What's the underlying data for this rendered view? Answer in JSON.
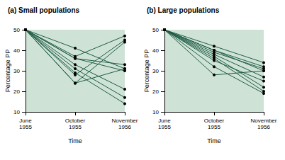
{
  "chart_data": [
    {
      "type": "line",
      "title": "(a) Small populations",
      "x_label": "Time",
      "y_label": "Percentage PP",
      "categories": [
        "June 1955",
        "October 1955",
        "November 1956"
      ],
      "color": "#1e5c46",
      "marker": "circle",
      "grid": false,
      "ylim": [
        10,
        50
      ],
      "yticks": [
        10,
        20,
        30,
        40,
        50
      ],
      "series": [
        {
          "values": [
            50,
            41,
            31
          ]
        },
        {
          "values": [
            50,
            37,
            47
          ]
        },
        {
          "values": [
            50,
            36,
            33
          ]
        },
        {
          "values": [
            50,
            36,
            30
          ]
        },
        {
          "values": [
            50,
            33,
            21
          ]
        },
        {
          "values": [
            50,
            31,
            17
          ]
        },
        {
          "values": [
            50,
            29,
            14
          ]
        },
        {
          "values": [
            50,
            28,
            45
          ]
        },
        {
          "values": [
            50,
            24,
            44
          ]
        },
        {
          "values": [
            50,
            24,
            31
          ]
        }
      ]
    },
    {
      "type": "line",
      "title": "(b) Large populations",
      "x_label": "Time",
      "y_label": "Percentage PP",
      "categories": [
        "June 1955",
        "October 1955",
        "November 1956"
      ],
      "color": "#1e5c46",
      "marker": "circle",
      "grid": false,
      "ylim": [
        10,
        50
      ],
      "yticks": [
        10,
        20,
        30,
        40,
        50
      ],
      "series": [
        {
          "values": [
            50,
            42,
            34
          ]
        },
        {
          "values": [
            50,
            40,
            32
          ]
        },
        {
          "values": [
            50,
            40,
            30
          ]
        },
        {
          "values": [
            50,
            39,
            31
          ]
        },
        {
          "values": [
            50,
            38,
            27
          ]
        },
        {
          "values": [
            50,
            37,
            22
          ]
        },
        {
          "values": [
            50,
            36,
            20
          ]
        },
        {
          "values": [
            50,
            35,
            25
          ]
        },
        {
          "values": [
            50,
            32,
            19
          ]
        },
        {
          "values": [
            50,
            28,
            30
          ]
        }
      ]
    }
  ]
}
